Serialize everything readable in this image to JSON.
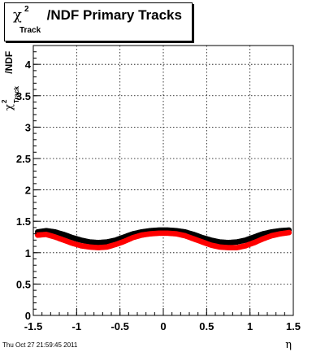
{
  "title": {
    "symbol": "χ",
    "superscript": "2",
    "subscript": "Track",
    "text": "/NDF  Primary Tracks"
  },
  "ylabel": {
    "symbol": "χ",
    "superscript": "2",
    "subscript": "Track",
    "text": "/NDF"
  },
  "xlabel": "η",
  "timestamp": "Thu Oct 27 21:59:45 2011",
  "colors": {
    "series_black": "#000000",
    "series_red": "#ff0000",
    "axis": "#000000"
  },
  "chart_data": {
    "type": "scatter",
    "xlim": [
      -1.5,
      1.5
    ],
    "ylim": [
      0,
      4.3
    ],
    "x_ticks": [
      "-1.5",
      "-1",
      "-0.5",
      "0",
      "0.5",
      "1",
      "1.5"
    ],
    "y_ticks": [
      "0",
      "0.5",
      "1",
      "1.5",
      "2",
      "2.5",
      "3",
      "3.5",
      "4"
    ],
    "grid": true,
    "series": [
      {
        "color": "#000000",
        "x": [
          -1.45,
          -1.35,
          -1.25,
          -1.15,
          -1.05,
          -0.95,
          -0.85,
          -0.75,
          -0.65,
          -0.55,
          -0.45,
          -0.35,
          -0.25,
          -0.15,
          -0.05,
          0.05,
          0.15,
          0.25,
          0.35,
          0.45,
          0.55,
          0.65,
          0.75,
          0.85,
          0.95,
          1.05,
          1.15,
          1.25,
          1.35,
          1.45
        ],
        "y": [
          1.33,
          1.35,
          1.33,
          1.29,
          1.24,
          1.2,
          1.17,
          1.16,
          1.17,
          1.2,
          1.25,
          1.3,
          1.33,
          1.35,
          1.36,
          1.36,
          1.35,
          1.33,
          1.29,
          1.24,
          1.2,
          1.17,
          1.16,
          1.17,
          1.2,
          1.25,
          1.3,
          1.33,
          1.35,
          1.36
        ]
      },
      {
        "color": "#ff0000",
        "x": [
          -1.45,
          -1.35,
          -1.25,
          -1.15,
          -1.05,
          -0.95,
          -0.85,
          -0.75,
          -0.65,
          -0.55,
          -0.45,
          -0.35,
          -0.25,
          -0.15,
          -0.05,
          0.05,
          0.15,
          0.25,
          0.35,
          0.45,
          0.55,
          0.65,
          0.75,
          0.85,
          0.95,
          1.05,
          1.15,
          1.25,
          1.35,
          1.45
        ],
        "y": [
          1.28,
          1.29,
          1.25,
          1.2,
          1.15,
          1.11,
          1.09,
          1.08,
          1.09,
          1.13,
          1.18,
          1.24,
          1.28,
          1.3,
          1.31,
          1.31,
          1.3,
          1.27,
          1.22,
          1.17,
          1.12,
          1.09,
          1.08,
          1.08,
          1.11,
          1.16,
          1.22,
          1.27,
          1.3,
          1.32
        ]
      }
    ]
  }
}
